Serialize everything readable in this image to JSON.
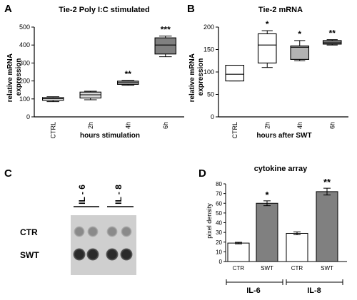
{
  "panels": [
    {
      "letter": "A",
      "title": "Tie-2 Poly I:C stimulated",
      "ylabel_lines": [
        "relative mRNA",
        "expression"
      ],
      "xlabel": "hours stimulation"
    },
    {
      "letter": "B",
      "title": "Tie-2 mRNA",
      "ylabel_lines": [
        "relative mRNA",
        "expression"
      ],
      "xlabel": "hours after SWT"
    },
    {
      "letter": "C",
      "groups": [
        "IL - 6",
        "IL - 8"
      ],
      "rows": [
        "CTR",
        "SWT"
      ]
    },
    {
      "letter": "D",
      "title": "cytokine array",
      "ylabel": "pixel density",
      "groups": [
        "IL-6",
        "IL-8"
      ]
    }
  ],
  "chart_data": [
    {
      "type": "box",
      "title": "Tie-2 Poly I:C stimulated",
      "xlabel": "hours stimulation",
      "ylabel": "relative mRNA expression",
      "ylim": [
        0,
        500
      ],
      "yticks": [
        0,
        100,
        200,
        300,
        400,
        500
      ],
      "categories": [
        "CTRL",
        "2h",
        "4h",
        "6h"
      ],
      "boxes": [
        {
          "min": 85,
          "q1": 92,
          "median": 101,
          "q3": 108,
          "max": 112,
          "fill": "#ffffff"
        },
        {
          "min": 95,
          "q1": 105,
          "median": 123,
          "q3": 138,
          "max": 143,
          "fill": "#d9d9d9"
        },
        {
          "min": 176,
          "q1": 181,
          "median": 191,
          "q3": 199,
          "max": 203,
          "fill": "#b3b3b3"
        },
        {
          "min": 335,
          "q1": 350,
          "median": 400,
          "q3": 440,
          "max": 450,
          "fill": "#808080"
        }
      ],
      "annotations": [
        "",
        "",
        "**",
        "***"
      ],
      "grid": false
    },
    {
      "type": "box",
      "title": "Tie-2 mRNA",
      "xlabel": "hours after SWT",
      "ylabel": "relative mRNA expression",
      "ylim": [
        0,
        200
      ],
      "yticks": [
        0,
        50,
        100,
        150,
        200
      ],
      "categories": [
        "CTRL",
        "2h",
        "4h",
        "6h"
      ],
      "boxes": [
        {
          "min": 80,
          "q1": 80,
          "median": 95,
          "q3": 115,
          "max": 115,
          "fill": "#ffffff"
        },
        {
          "min": 110,
          "q1": 120,
          "median": 160,
          "q3": 185,
          "max": 192,
          "fill": "#ffffff"
        },
        {
          "min": 125,
          "q1": 128,
          "median": 155,
          "q3": 158,
          "max": 170,
          "fill": "#b3b3b3"
        },
        {
          "min": 160,
          "q1": 162,
          "median": 165,
          "q3": 170,
          "max": 172,
          "fill": "#808080"
        }
      ],
      "annotations": [
        "",
        "*",
        "*",
        "**"
      ],
      "grid": false
    },
    {
      "type": "bar",
      "title": "cytokine array",
      "ylabel": "pixel density",
      "ylim": [
        0,
        80
      ],
      "yticks": [
        0,
        10,
        20,
        30,
        40,
        50,
        60,
        70,
        80
      ],
      "categories": [
        "CTR",
        "SWT",
        "CTR",
        "SWT"
      ],
      "groups": [
        "IL-6",
        "IL-8"
      ],
      "values": [
        19,
        60,
        29,
        72
      ],
      "errors": [
        0.8,
        2.5,
        1.5,
        3.5
      ],
      "fills": [
        "#ffffff",
        "#808080",
        "#ffffff",
        "#808080"
      ],
      "annotations": [
        "",
        "*",
        "",
        "**"
      ],
      "grid": false
    }
  ]
}
